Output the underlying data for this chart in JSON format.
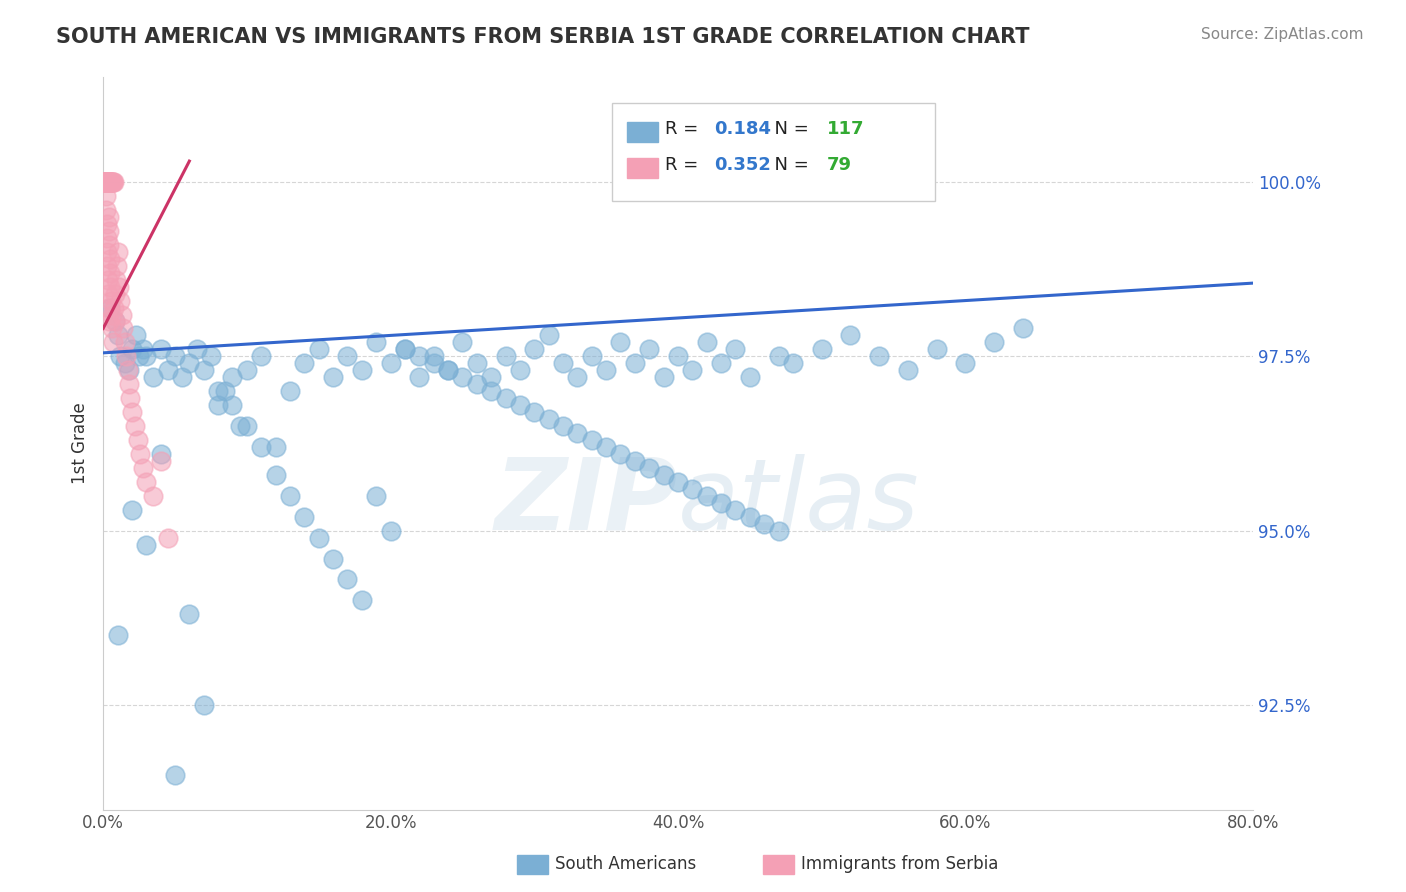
{
  "title": "SOUTH AMERICAN VS IMMIGRANTS FROM SERBIA 1ST GRADE CORRELATION CHART",
  "source": "Source: ZipAtlas.com",
  "ylabel": "1st Grade",
  "x_min": 0.0,
  "x_max": 80.0,
  "y_min": 91.0,
  "y_max": 101.5,
  "y_ticks": [
    92.5,
    95.0,
    97.5,
    100.0
  ],
  "y_tick_labels": [
    "92.5%",
    "95.0%",
    "97.5%",
    "100.0%"
  ],
  "x_ticks": [
    0.0,
    20.0,
    40.0,
    60.0,
    80.0
  ],
  "x_tick_labels": [
    "0.0%",
    "20.0%",
    "40.0%",
    "60.0%",
    "80.0%"
  ],
  "blue_label": "South Americans",
  "pink_label": "Immigrants from Serbia",
  "blue_R": 0.184,
  "blue_N": 117,
  "pink_R": 0.352,
  "pink_N": 79,
  "blue_color": "#7bafd4",
  "pink_color": "#f4a0b5",
  "blue_line_color": "#3366cc",
  "pink_line_color": "#cc3366",
  "watermark_zip": "ZIP",
  "watermark_atlas": "atlas",
  "title_color": "#333333",
  "legend_R_color": "#3377cc",
  "legend_N_color": "#33aa33",
  "blue_x": [
    0.5,
    0.8,
    1.0,
    1.2,
    1.5,
    1.8,
    2.0,
    2.3,
    2.5,
    2.8,
    3.0,
    3.5,
    4.0,
    4.5,
    5.0,
    5.5,
    6.0,
    6.5,
    7.0,
    7.5,
    8.0,
    8.5,
    9.0,
    9.5,
    10.0,
    11.0,
    12.0,
    13.0,
    14.0,
    15.0,
    16.0,
    17.0,
    18.0,
    19.0,
    20.0,
    21.0,
    22.0,
    23.0,
    24.0,
    25.0,
    26.0,
    27.0,
    28.0,
    29.0,
    30.0,
    31.0,
    32.0,
    33.0,
    34.0,
    35.0,
    36.0,
    37.0,
    38.0,
    39.0,
    40.0,
    41.0,
    42.0,
    43.0,
    44.0,
    45.0,
    47.0,
    48.0,
    50.0,
    52.0,
    54.0,
    56.0,
    58.0,
    60.0,
    62.0,
    64.0,
    1.0,
    2.0,
    3.0,
    4.0,
    5.0,
    6.0,
    7.0,
    8.0,
    9.0,
    10.0,
    11.0,
    12.0,
    13.0,
    14.0,
    15.0,
    16.0,
    17.0,
    18.0,
    19.0,
    20.0,
    21.0,
    22.0,
    23.0,
    24.0,
    25.0,
    26.0,
    27.0,
    28.0,
    29.0,
    30.0,
    31.0,
    32.0,
    33.0,
    34.0,
    35.0,
    36.0,
    37.0,
    38.0,
    39.0,
    40.0,
    41.0,
    42.0,
    43.0,
    44.0,
    45.0,
    46.0,
    47.0
  ],
  "blue_y": [
    98.2,
    98.0,
    97.8,
    97.5,
    97.4,
    97.3,
    97.6,
    97.8,
    97.5,
    97.6,
    97.5,
    97.2,
    97.6,
    97.3,
    97.5,
    97.2,
    97.4,
    97.6,
    97.3,
    97.5,
    96.8,
    97.0,
    97.2,
    96.5,
    97.3,
    97.5,
    96.2,
    97.0,
    97.4,
    97.6,
    97.2,
    97.5,
    97.3,
    97.7,
    97.4,
    97.6,
    97.2,
    97.5,
    97.3,
    97.7,
    97.4,
    97.2,
    97.5,
    97.3,
    97.6,
    97.8,
    97.4,
    97.2,
    97.5,
    97.3,
    97.7,
    97.4,
    97.6,
    97.2,
    97.5,
    97.3,
    97.7,
    97.4,
    97.6,
    97.2,
    97.5,
    97.4,
    97.6,
    97.8,
    97.5,
    97.3,
    97.6,
    97.4,
    97.7,
    97.9,
    93.5,
    95.3,
    94.8,
    96.1,
    91.5,
    93.8,
    92.5,
    97.0,
    96.8,
    96.5,
    96.2,
    95.8,
    95.5,
    95.2,
    94.9,
    94.6,
    94.3,
    94.0,
    95.5,
    95.0,
    97.6,
    97.5,
    97.4,
    97.3,
    97.2,
    97.1,
    97.0,
    96.9,
    96.8,
    96.7,
    96.6,
    96.5,
    96.4,
    96.3,
    96.2,
    96.1,
    96.0,
    95.9,
    95.8,
    95.7,
    95.6,
    95.5,
    95.4,
    95.3,
    95.2,
    95.1,
    95.0
  ],
  "pink_x": [
    0.05,
    0.08,
    0.1,
    0.12,
    0.14,
    0.16,
    0.18,
    0.2,
    0.22,
    0.24,
    0.26,
    0.28,
    0.3,
    0.32,
    0.34,
    0.36,
    0.38,
    0.4,
    0.42,
    0.44,
    0.46,
    0.48,
    0.5,
    0.55,
    0.6,
    0.65,
    0.7,
    0.75,
    0.8,
    0.85,
    0.9,
    0.95,
    1.0,
    1.1,
    1.2,
    1.3,
    1.4,
    1.5,
    1.6,
    1.7,
    1.8,
    1.9,
    2.0,
    2.2,
    2.4,
    2.6,
    2.8,
    3.0,
    3.5,
    4.0,
    4.5,
    0.06,
    0.09,
    0.11,
    0.13,
    0.15,
    0.17,
    0.19,
    0.21,
    0.23,
    0.25,
    0.27,
    0.29,
    0.31,
    0.33,
    0.35,
    0.37,
    0.39,
    0.41,
    0.43,
    0.45,
    0.47,
    0.49,
    0.52,
    0.57,
    0.62,
    0.67,
    0.72,
    0.77
  ],
  "pink_y": [
    100.0,
    100.0,
    100.0,
    100.0,
    100.0,
    100.0,
    100.0,
    99.8,
    99.6,
    99.4,
    99.2,
    99.0,
    98.8,
    98.6,
    98.4,
    98.2,
    98.0,
    99.5,
    99.3,
    99.1,
    98.9,
    98.7,
    98.5,
    98.3,
    98.1,
    97.9,
    97.7,
    98.2,
    98.0,
    98.4,
    98.6,
    98.8,
    99.0,
    98.5,
    98.3,
    98.1,
    97.9,
    97.7,
    97.5,
    97.3,
    97.1,
    96.9,
    96.7,
    96.5,
    96.3,
    96.1,
    95.9,
    95.7,
    95.5,
    96.0,
    94.9,
    100.0,
    100.0,
    100.0,
    100.0,
    100.0,
    100.0,
    100.0,
    100.0,
    100.0,
    100.0,
    100.0,
    100.0,
    100.0,
    100.0,
    100.0,
    100.0,
    100.0,
    100.0,
    100.0,
    100.0,
    100.0,
    100.0,
    100.0,
    100.0,
    100.0,
    100.0,
    100.0,
    100.0
  ],
  "blue_trend_x": [
    0.0,
    80.0
  ],
  "blue_trend_y": [
    97.55,
    98.55
  ],
  "pink_trend_x": [
    0.0,
    6.0
  ],
  "pink_trend_y": [
    97.9,
    100.3
  ]
}
